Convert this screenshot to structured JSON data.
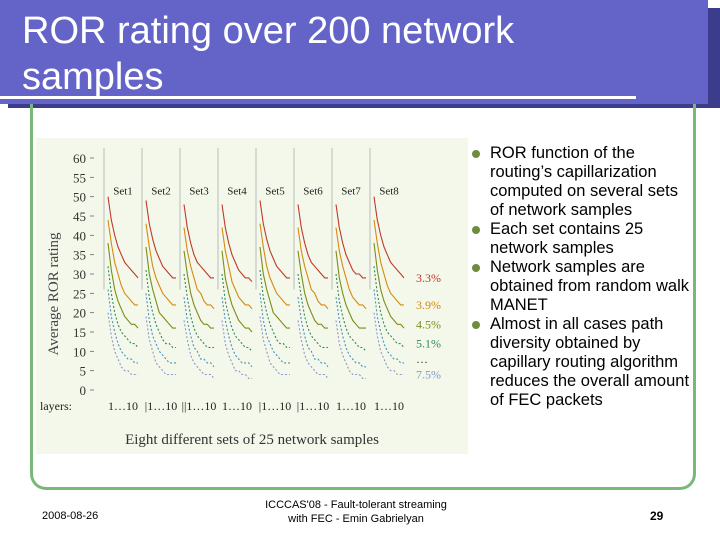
{
  "slide": {
    "title_line1": "ROR rating over 200 network",
    "title_line2": "samples",
    "bullets": [
      "ROR function of the routing’s capillarization computed on several sets of network samples",
      "Each set contains 25 network samples",
      "Network samples are obtained from random walk MANET",
      "Almost in all cases path diversity obtained by capillary routing algorithm reduces the overall amount of FEC packets"
    ],
    "footer_date": "2008-08-26",
    "footer_center_line1": "ICCCAS'08 - Fault-tolerant streaming",
    "footer_center_line2": "with FEC - Emin Gabrielyan",
    "page_number": "29"
  },
  "colors": {
    "title_bg": "#6464c8",
    "frame": "#7ab87a",
    "bullet": "#6e8c3c",
    "figure_bg": "#f3f8ea"
  },
  "chart_data": {
    "type": "line",
    "title": "",
    "xlabel": "Eight different sets of 25 network samples",
    "ylabel": "Average ROR rating",
    "ylim": [
      0,
      60
    ],
    "yticks": [
      "60",
      "55",
      "50",
      "45",
      "40",
      "35",
      "30",
      "25",
      "20",
      "15",
      "10",
      "5",
      "0"
    ],
    "layers_label": "layers:",
    "x_group_labels": [
      "1…10",
      "|1…10",
      "||1…10",
      "1…10",
      "|1…10",
      "|1…10",
      "1…10",
      "1…10"
    ],
    "sets": [
      "Set1",
      "Set2",
      "Set3",
      "Set4",
      "Set5",
      "Set6",
      "Set7",
      "Set8"
    ],
    "layers": [
      1,
      2,
      3,
      4,
      5,
      6,
      7,
      8,
      9,
      10
    ],
    "annotations": [
      {
        "text": "3.3%",
        "color": "#c0392b",
        "y": 29
      },
      {
        "text": "3.9%",
        "color": "#d68910",
        "y": 22
      },
      {
        "text": "4.5%",
        "color": "#7d8c1a",
        "y": 17
      },
      {
        "text": "5.1%",
        "color": "#2e8b57",
        "y": 12
      },
      {
        "text": "…",
        "color": "#333333",
        "y": 8
      },
      {
        "text": "7.5%",
        "color": "#8899cc",
        "y": 4
      }
    ],
    "series": [
      {
        "color": "#c0392b",
        "sets": [
          [
            50,
            44,
            40,
            37,
            35,
            33,
            32,
            31,
            30,
            29
          ],
          [
            49,
            43,
            39,
            36,
            34,
            32,
            31,
            30,
            29,
            29
          ],
          [
            48,
            42,
            38,
            35,
            33,
            32,
            31,
            30,
            29,
            29
          ],
          [
            48,
            42,
            38,
            35,
            33,
            31,
            30,
            29,
            29,
            28
          ],
          [
            49,
            43,
            39,
            36,
            34,
            32,
            31,
            30,
            29,
            29
          ],
          [
            48,
            42,
            38,
            35,
            33,
            32,
            31,
            30,
            29,
            29
          ],
          [
            48,
            42,
            38,
            35,
            33,
            31,
            30,
            30,
            29,
            29
          ],
          [
            50,
            44,
            40,
            37,
            35,
            33,
            32,
            31,
            30,
            29
          ]
        ]
      },
      {
        "color": "#d68910",
        "sets": [
          [
            44,
            38,
            33,
            30,
            27,
            25,
            24,
            23,
            22,
            22
          ],
          [
            43,
            37,
            32,
            29,
            27,
            25,
            24,
            23,
            22,
            22
          ],
          [
            42,
            36,
            32,
            29,
            26,
            25,
            23,
            22,
            22,
            21
          ],
          [
            42,
            36,
            32,
            28,
            26,
            24,
            23,
            22,
            22,
            21
          ],
          [
            43,
            37,
            32,
            29,
            27,
            25,
            24,
            23,
            22,
            22
          ],
          [
            42,
            36,
            32,
            29,
            26,
            25,
            23,
            22,
            22,
            21
          ],
          [
            42,
            36,
            32,
            29,
            26,
            24,
            23,
            22,
            22,
            21
          ],
          [
            44,
            38,
            33,
            30,
            27,
            25,
            24,
            23,
            22,
            22
          ]
        ]
      },
      {
        "color": "#7d8c1a",
        "sets": [
          [
            38,
            31,
            26,
            23,
            21,
            19,
            18,
            17,
            17,
            16
          ],
          [
            37,
            30,
            26,
            23,
            20,
            19,
            18,
            17,
            16,
            16
          ],
          [
            36,
            30,
            25,
            22,
            20,
            18,
            17,
            17,
            16,
            16
          ],
          [
            36,
            29,
            25,
            22,
            20,
            18,
            17,
            16,
            16,
            15
          ],
          [
            37,
            30,
            26,
            23,
            20,
            19,
            18,
            17,
            16,
            16
          ],
          [
            36,
            30,
            25,
            22,
            20,
            18,
            17,
            17,
            16,
            16
          ],
          [
            36,
            29,
            25,
            22,
            20,
            18,
            17,
            16,
            16,
            16
          ],
          [
            38,
            31,
            26,
            23,
            21,
            19,
            18,
            17,
            17,
            16
          ]
        ]
      },
      {
        "color": "#2e8b57",
        "sets": [
          [
            32,
            25,
            20,
            17,
            15,
            14,
            13,
            12,
            12,
            11
          ],
          [
            31,
            24,
            20,
            17,
            15,
            13,
            12,
            12,
            11,
            11
          ],
          [
            30,
            24,
            19,
            16,
            14,
            13,
            12,
            11,
            11,
            11
          ],
          [
            30,
            23,
            19,
            16,
            14,
            13,
            12,
            11,
            11,
            10
          ],
          [
            31,
            24,
            20,
            17,
            15,
            13,
            12,
            12,
            11,
            11
          ],
          [
            30,
            24,
            19,
            16,
            14,
            13,
            12,
            11,
            11,
            11
          ],
          [
            30,
            23,
            19,
            16,
            14,
            13,
            12,
            11,
            11,
            10
          ],
          [
            32,
            25,
            20,
            17,
            15,
            14,
            13,
            12,
            12,
            11
          ]
        ]
      },
      {
        "color": "#4a90c0",
        "sets": [
          [
            26,
            19,
            15,
            12,
            10,
            9,
            8,
            8,
            7,
            7
          ],
          [
            25,
            18,
            14,
            12,
            10,
            9,
            8,
            7,
            7,
            7
          ],
          [
            24,
            18,
            14,
            11,
            10,
            8,
            8,
            7,
            7,
            6
          ],
          [
            24,
            18,
            14,
            11,
            9,
            8,
            7,
            7,
            7,
            6
          ],
          [
            25,
            18,
            14,
            12,
            10,
            9,
            8,
            7,
            7,
            7
          ],
          [
            24,
            18,
            14,
            11,
            10,
            8,
            8,
            7,
            7,
            6
          ],
          [
            24,
            18,
            14,
            11,
            9,
            8,
            7,
            7,
            6,
            6
          ],
          [
            26,
            19,
            15,
            12,
            10,
            9,
            8,
            8,
            7,
            7
          ]
        ]
      },
      {
        "color": "#8899cc",
        "sets": [
          [
            20,
            14,
            10,
            8,
            6,
            5,
            5,
            4,
            4,
            4
          ],
          [
            19,
            13,
            10,
            7,
            6,
            5,
            4,
            4,
            4,
            4
          ],
          [
            18,
            13,
            9,
            7,
            6,
            5,
            4,
            4,
            4,
            3
          ],
          [
            18,
            12,
            9,
            7,
            5,
            5,
            4,
            4,
            3,
            3
          ],
          [
            19,
            13,
            10,
            7,
            6,
            5,
            4,
            4,
            4,
            4
          ],
          [
            18,
            13,
            9,
            7,
            6,
            5,
            4,
            4,
            4,
            3
          ],
          [
            18,
            12,
            9,
            7,
            5,
            4,
            4,
            4,
            3,
            3
          ],
          [
            20,
            14,
            10,
            8,
            6,
            5,
            5,
            4,
            4,
            4
          ]
        ]
      }
    ]
  }
}
